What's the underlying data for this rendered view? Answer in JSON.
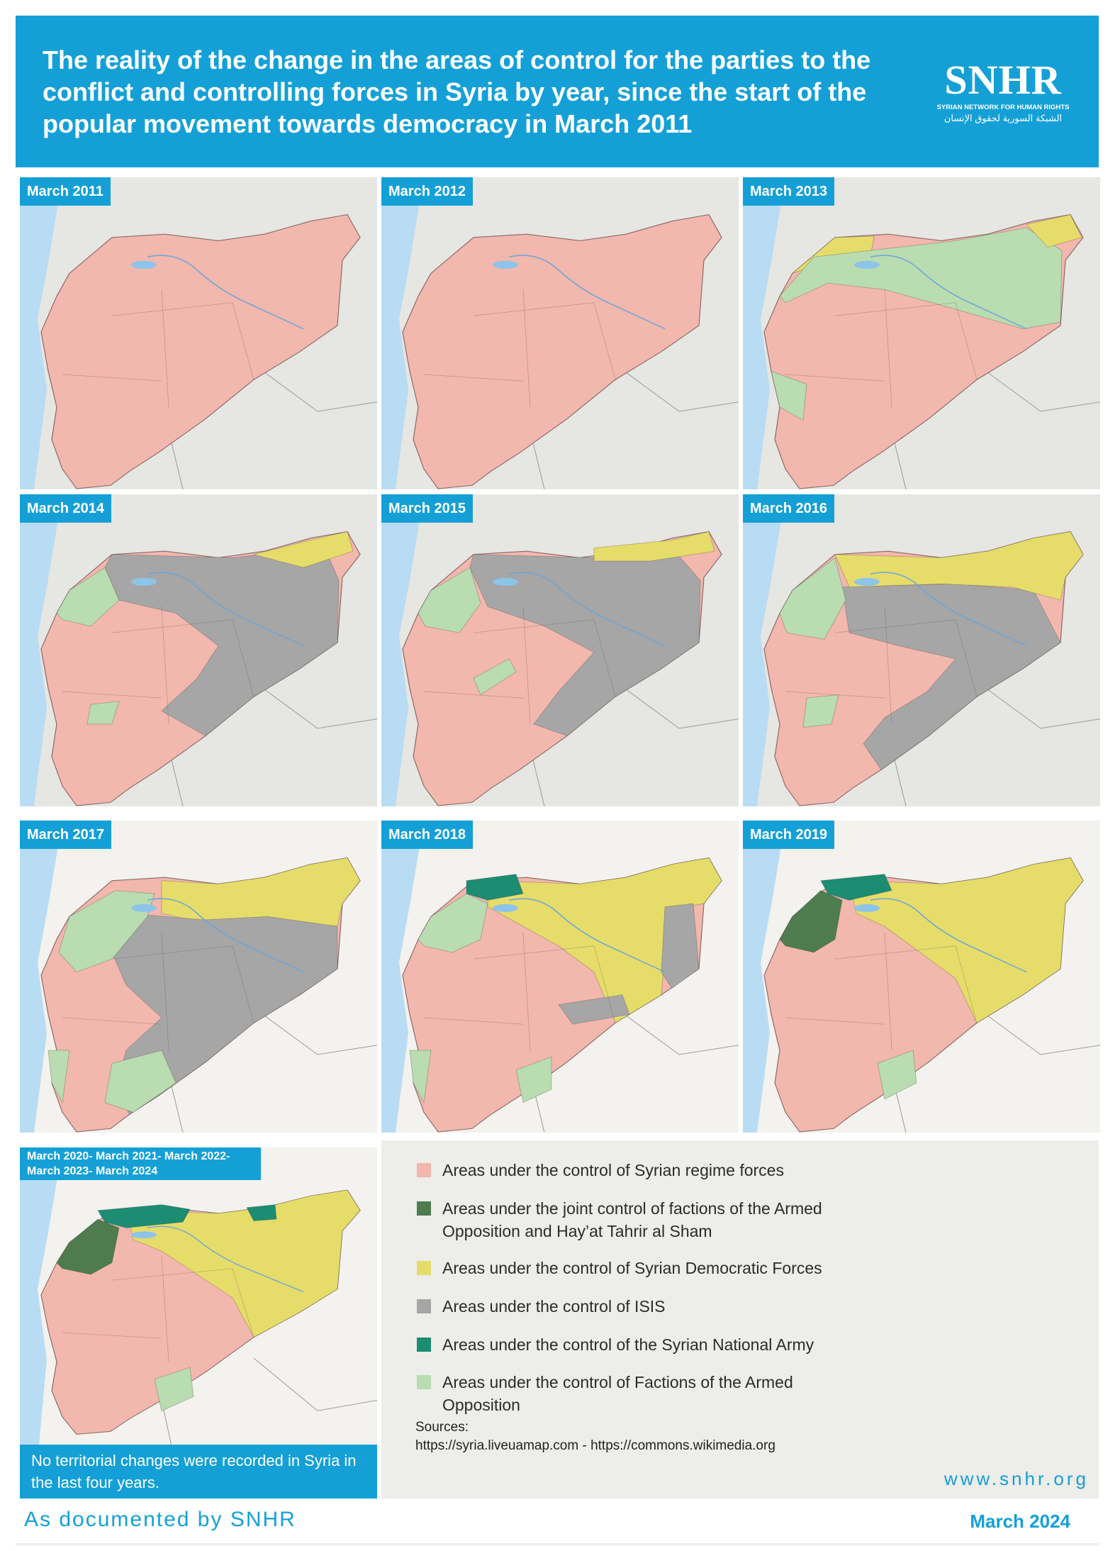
{
  "header": {
    "title": "The reality of the change in the areas of control for the parties to the conflict and controlling forces in Syria by year, since the start of the popular movement towards democracy in March 2011",
    "logo_mark": "SNHR",
    "logo_en": "SYRIAN NETWORK FOR HUMAN RIGHTS",
    "logo_ar": "الشبكة السورية لحقوق الإنسان"
  },
  "colors": {
    "regime": "#f2b7ad",
    "joint_hts": "#4e7c4f",
    "sdf": "#e6dc6a",
    "isis": "#a6a6a6",
    "sna": "#1c8c72",
    "opposition": "#b9dcb0",
    "brand": "#14a0d6"
  },
  "panels": [
    {
      "label": "March 2011"
    },
    {
      "label": "March 2012"
    },
    {
      "label": "March 2013"
    },
    {
      "label": "March 2014"
    },
    {
      "label": "March 2015"
    },
    {
      "label": "March 2016"
    },
    {
      "label": "March 2017"
    },
    {
      "label": "March 2018"
    },
    {
      "label": "March 2019"
    },
    {
      "label": "March 2020- March 2021- March 2022- March 2023- March 2024",
      "note": "No territorial changes were recorded in Syria in the last four years."
    }
  ],
  "legend": {
    "items": [
      {
        "key": "regime",
        "text": "Areas under the control of Syrian regime forces"
      },
      {
        "key": "joint_hts",
        "text": "Areas under the joint control of factions of the Armed Opposition and Hay’at Tahrir al Sham"
      },
      {
        "key": "sdf",
        "text": "Areas under the control of Syrian Democratic Forces"
      },
      {
        "key": "isis",
        "text": "Areas under the control of ISIS"
      },
      {
        "key": "sna",
        "text": "Areas under the control of the Syrian National Army"
      },
      {
        "key": "opposition",
        "text": "Areas under the control of Factions of the Armed Opposition"
      }
    ],
    "sources_label": "Sources:",
    "sources_text": "https://syria.liveuamap.com - https://commons.wikimedia.org",
    "website": "www.snhr.org"
  },
  "footer": {
    "left": "As documented by SNHR",
    "right": "March 2024"
  }
}
